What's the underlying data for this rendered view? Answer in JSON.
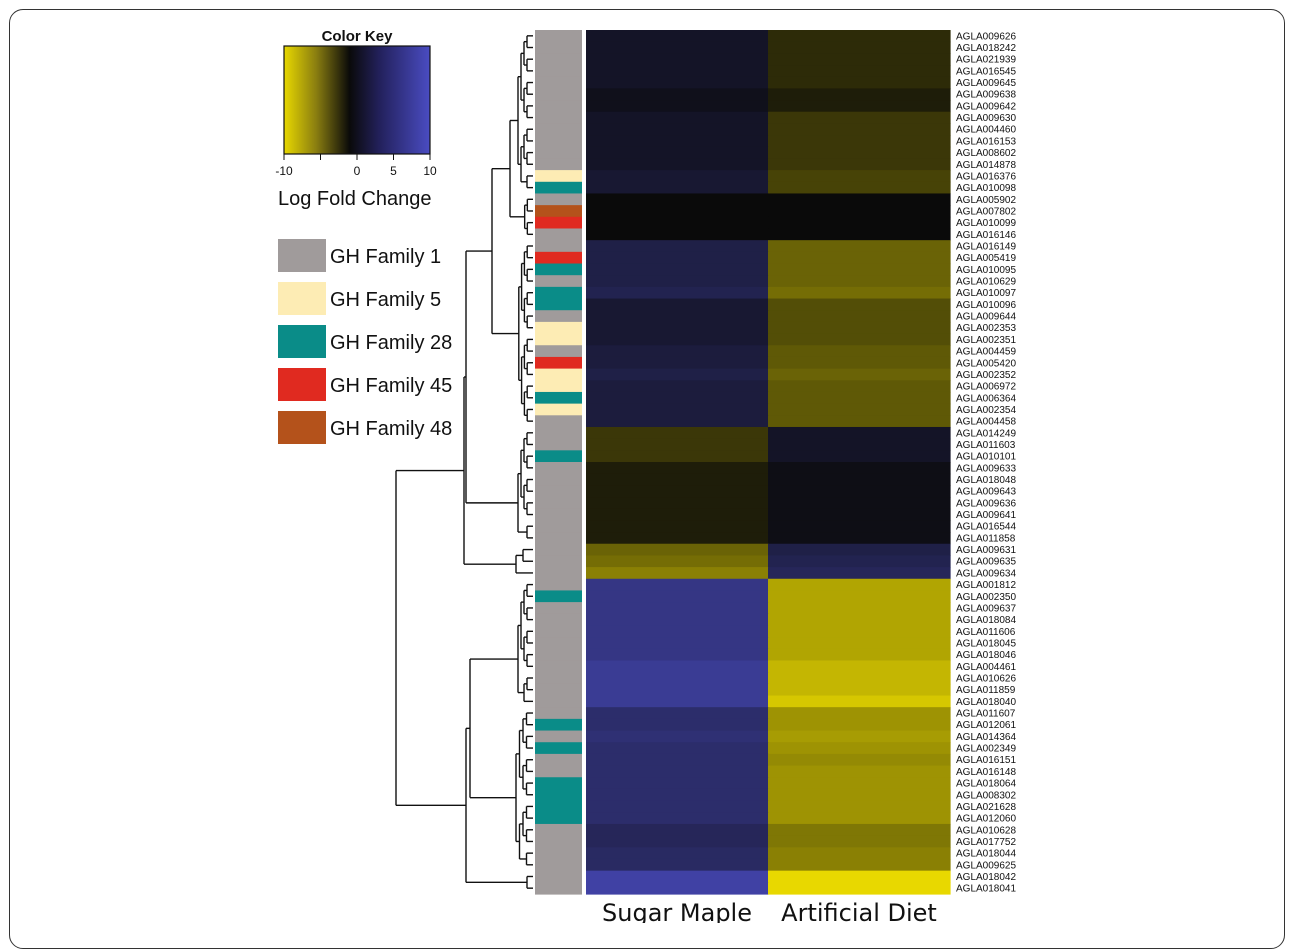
{
  "chart_data": {
    "type": "heatmap",
    "columns": [
      "Sugar Maple",
      "Artificial Diet"
    ],
    "color_key": {
      "title": "Color Key",
      "label": "Log Fold Change",
      "ticks": [
        "-10",
        "0",
        "5",
        "10"
      ],
      "range": [
        -10,
        10
      ],
      "low_color": "#e8d800",
      "mid_color": "#0a0a0a",
      "high_color": "#4a4cc2"
    },
    "families": [
      {
        "name": "GH Family 1",
        "color": "#a09b9b"
      },
      {
        "name": "GH Family 5",
        "color": "#fdecb4"
      },
      {
        "name": "GH Family 28",
        "color": "#0a8c88"
      },
      {
        "name": "GH Family 45",
        "color": "#e02a20"
      },
      {
        "name": "GH Family 48",
        "color": "#b4521b"
      }
    ],
    "rows": [
      {
        "gene": "AGLA009626",
        "family": 0,
        "values": [
          1,
          -1
        ]
      },
      {
        "gene": "AGLA018242",
        "family": 0,
        "values": [
          1,
          -1
        ]
      },
      {
        "gene": "AGLA021939",
        "family": 0,
        "values": [
          1,
          -1
        ]
      },
      {
        "gene": "AGLA016545",
        "family": 0,
        "values": [
          1,
          -1
        ]
      },
      {
        "gene": "AGLA009645",
        "family": 0,
        "values": [
          1,
          -1
        ]
      },
      {
        "gene": "AGLA009638",
        "family": 0,
        "values": [
          0.5,
          -0.5
        ]
      },
      {
        "gene": "AGLA009642",
        "family": 0,
        "values": [
          0.5,
          -0.5
        ]
      },
      {
        "gene": "AGLA009630",
        "family": 0,
        "values": [
          1,
          -1.5
        ]
      },
      {
        "gene": "AGLA004460",
        "family": 0,
        "values": [
          1,
          -1.5
        ]
      },
      {
        "gene": "AGLA016153",
        "family": 0,
        "values": [
          1,
          -1.5
        ]
      },
      {
        "gene": "AGLA008602",
        "family": 0,
        "values": [
          1,
          -1.5
        ]
      },
      {
        "gene": "AGLA014878",
        "family": 0,
        "values": [
          1,
          -1.5
        ]
      },
      {
        "gene": "AGLA016376",
        "family": 1,
        "values": [
          1.5,
          -2
        ]
      },
      {
        "gene": "AGLA010098",
        "family": 2,
        "values": [
          1.5,
          -2
        ]
      },
      {
        "gene": "AGLA005902",
        "family": 0,
        "values": [
          0,
          0
        ]
      },
      {
        "gene": "AGLA007802",
        "family": 4,
        "values": [
          0,
          0
        ]
      },
      {
        "gene": "AGLA010099",
        "family": 3,
        "values": [
          0,
          0
        ]
      },
      {
        "gene": "AGLA016146",
        "family": 0,
        "values": [
          0,
          0
        ]
      },
      {
        "gene": "AGLA016149",
        "family": 0,
        "values": [
          2.5,
          -3.5
        ]
      },
      {
        "gene": "AGLA005419",
        "family": 3,
        "values": [
          2.5,
          -3.5
        ]
      },
      {
        "gene": "AGLA010095",
        "family": 2,
        "values": [
          2.5,
          -3.5
        ]
      },
      {
        "gene": "AGLA010629",
        "family": 0,
        "values": [
          2.5,
          -3.5
        ]
      },
      {
        "gene": "AGLA010097",
        "family": 2,
        "values": [
          3,
          -4
        ]
      },
      {
        "gene": "AGLA010096",
        "family": 2,
        "values": [
          1.5,
          -2.5
        ]
      },
      {
        "gene": "AGLA009644",
        "family": 0,
        "values": [
          1.5,
          -2.5
        ]
      },
      {
        "gene": "AGLA002353",
        "family": 1,
        "values": [
          1.5,
          -2.5
        ]
      },
      {
        "gene": "AGLA002351",
        "family": 1,
        "values": [
          1.5,
          -2.5
        ]
      },
      {
        "gene": "AGLA004459",
        "family": 0,
        "values": [
          2,
          -3
        ]
      },
      {
        "gene": "AGLA005420",
        "family": 3,
        "values": [
          2,
          -3
        ]
      },
      {
        "gene": "AGLA002352",
        "family": 1,
        "values": [
          2.5,
          -3.5
        ]
      },
      {
        "gene": "AGLA006972",
        "family": 1,
        "values": [
          2,
          -3
        ]
      },
      {
        "gene": "AGLA006364",
        "family": 2,
        "values": [
          2,
          -3
        ]
      },
      {
        "gene": "AGLA002354",
        "family": 1,
        "values": [
          2,
          -3
        ]
      },
      {
        "gene": "AGLA004458",
        "family": 0,
        "values": [
          2,
          -3
        ]
      },
      {
        "gene": "AGLA014249",
        "family": 0,
        "values": [
          -1.5,
          1
        ]
      },
      {
        "gene": "AGLA011603",
        "family": 0,
        "values": [
          -1.5,
          1
        ]
      },
      {
        "gene": "AGLA010101",
        "family": 2,
        "values": [
          -1.5,
          1
        ]
      },
      {
        "gene": "AGLA009633",
        "family": 0,
        "values": [
          -0.5,
          0.3
        ]
      },
      {
        "gene": "AGLA018048",
        "family": 0,
        "values": [
          -0.5,
          0.3
        ]
      },
      {
        "gene": "AGLA009643",
        "family": 0,
        "values": [
          -0.5,
          0.3
        ]
      },
      {
        "gene": "AGLA009636",
        "family": 0,
        "values": [
          -0.5,
          0.3
        ]
      },
      {
        "gene": "AGLA009641",
        "family": 0,
        "values": [
          -0.5,
          0.3
        ]
      },
      {
        "gene": "AGLA016544",
        "family": 0,
        "values": [
          -0.5,
          0.3
        ]
      },
      {
        "gene": "AGLA011858",
        "family": 0,
        "values": [
          -0.5,
          0.3
        ]
      },
      {
        "gene": "AGLA009631",
        "family": 0,
        "values": [
          -3.5,
          2.5
        ]
      },
      {
        "gene": "AGLA009635",
        "family": 0,
        "values": [
          -4,
          3
        ]
      },
      {
        "gene": "AGLA009634",
        "family": 0,
        "values": [
          -5,
          3.5
        ]
      },
      {
        "gene": "AGLA001812",
        "family": 0,
        "values": [
          6,
          -7
        ]
      },
      {
        "gene": "AGLA002350",
        "family": 2,
        "values": [
          6,
          -7
        ]
      },
      {
        "gene": "AGLA009637",
        "family": 0,
        "values": [
          6,
          -7
        ]
      },
      {
        "gene": "AGLA018084",
        "family": 0,
        "values": [
          6,
          -7
        ]
      },
      {
        "gene": "AGLA011606",
        "family": 0,
        "values": [
          6,
          -7
        ]
      },
      {
        "gene": "AGLA018045",
        "family": 0,
        "values": [
          6,
          -7
        ]
      },
      {
        "gene": "AGLA018046",
        "family": 0,
        "values": [
          6,
          -7
        ]
      },
      {
        "gene": "AGLA004461",
        "family": 0,
        "values": [
          7,
          -8
        ]
      },
      {
        "gene": "AGLA010626",
        "family": 0,
        "values": [
          7,
          -8
        ]
      },
      {
        "gene": "AGLA011859",
        "family": 0,
        "values": [
          7,
          -8
        ]
      },
      {
        "gene": "AGLA018040",
        "family": 0,
        "values": [
          7,
          -9
        ]
      },
      {
        "gene": "AGLA011607",
        "family": 0,
        "values": [
          4.5,
          -6
        ]
      },
      {
        "gene": "AGLA012061",
        "family": 2,
        "values": [
          4.5,
          -6
        ]
      },
      {
        "gene": "AGLA014364",
        "family": 0,
        "values": [
          5,
          -6.5
        ]
      },
      {
        "gene": "AGLA002349",
        "family": 2,
        "values": [
          4.5,
          -6
        ]
      },
      {
        "gene": "AGLA016151",
        "family": 0,
        "values": [
          4.5,
          -5.5
        ]
      },
      {
        "gene": "AGLA016148",
        "family": 0,
        "values": [
          4.5,
          -6
        ]
      },
      {
        "gene": "AGLA018064",
        "family": 2,
        "values": [
          4.5,
          -6
        ]
      },
      {
        "gene": "AGLA008302",
        "family": 2,
        "values": [
          4.5,
          -6
        ]
      },
      {
        "gene": "AGLA021628",
        "family": 2,
        "values": [
          4.5,
          -6
        ]
      },
      {
        "gene": "AGLA012060",
        "family": 2,
        "values": [
          4.5,
          -6
        ]
      },
      {
        "gene": "AGLA010628",
        "family": 0,
        "values": [
          3.5,
          -4.5
        ]
      },
      {
        "gene": "AGLA017752",
        "family": 0,
        "values": [
          3.5,
          -4.5
        ]
      },
      {
        "gene": "AGLA018044",
        "family": 0,
        "values": [
          4,
          -5
        ]
      },
      {
        "gene": "AGLA009625",
        "family": 0,
        "values": [
          4,
          -5
        ]
      },
      {
        "gene": "AGLA018042",
        "family": 0,
        "values": [
          8,
          -10
        ]
      },
      {
        "gene": "AGLA018041",
        "family": 0,
        "values": [
          8,
          -10
        ]
      }
    ]
  }
}
